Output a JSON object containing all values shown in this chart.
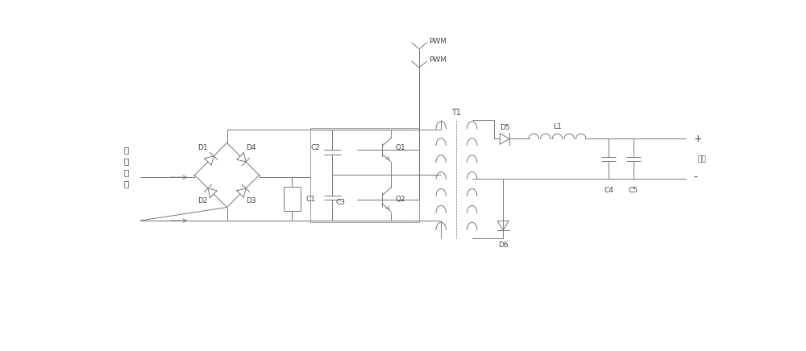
{
  "fig_width": 10.0,
  "fig_height": 4.36,
  "dpi": 100,
  "bg_color": "#ffffff",
  "line_color": "#777777",
  "lw": 0.7,
  "labels": {
    "ac_input": [
      "交",
      "流",
      "输",
      "入"
    ],
    "output": "输出",
    "D1": "D1",
    "D2": "D2",
    "D3": "D3",
    "D4": "D4",
    "C1": "C1",
    "C2": "C2",
    "C3": "C3",
    "Q1": "Q1",
    "Q2": "Q2",
    "T1": "T1",
    "D5": "D5",
    "D6": "D6",
    "L1": "L1",
    "C4": "C4",
    "C5": "C5",
    "PWM": "PWM",
    "plus": "+",
    "minus": "-"
  },
  "fontsize": 6.5,
  "fontcolor": "#444444"
}
